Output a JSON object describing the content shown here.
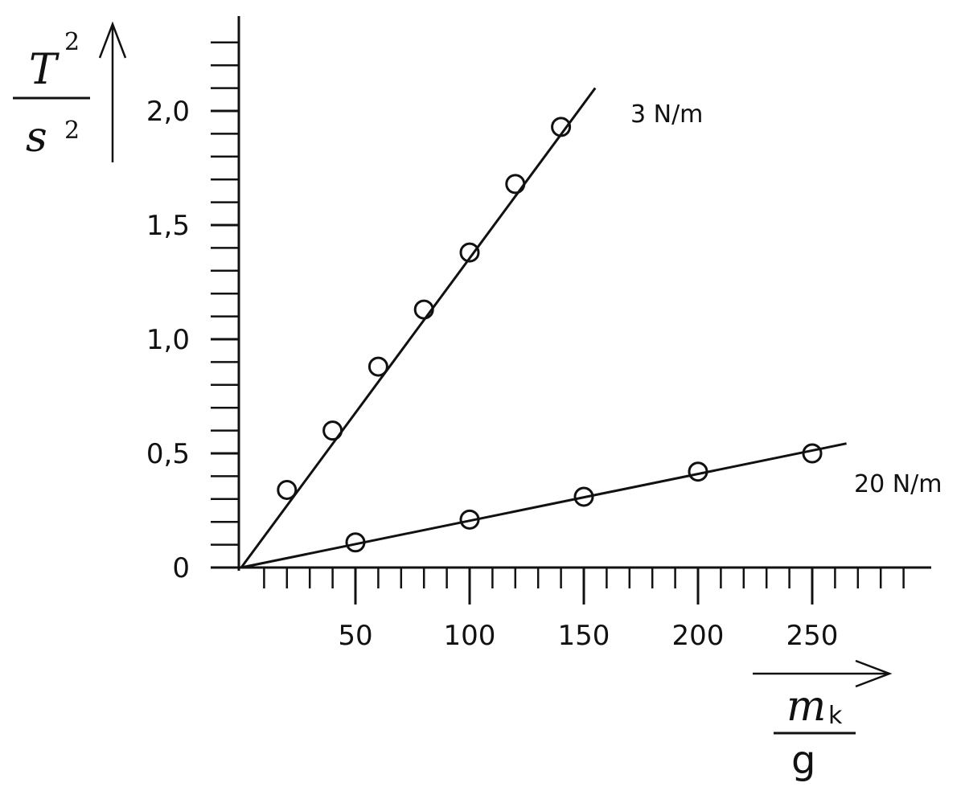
{
  "chart_data": {
    "type": "scatter",
    "xlim": [
      0,
      290
    ],
    "ylim": [
      0,
      2.35
    ],
    "grid": false,
    "x_ticks": [
      50,
      100,
      150,
      200,
      250
    ],
    "x_tick_labels": [
      "50",
      "100",
      "150",
      "200",
      "250"
    ],
    "y_ticks": [
      0,
      0.5,
      1.0,
      1.5,
      2.0
    ],
    "y_tick_labels": [
      "0",
      "0,5",
      "1,0",
      "1,5",
      "2,0"
    ],
    "x_label": {
      "symbol": "m",
      "subscript": "k",
      "unit": "g"
    },
    "y_label": {
      "symbol": "T",
      "superscript": "2",
      "unit": "s",
      "unit_superscript": "2"
    },
    "series": [
      {
        "name": "3 N/m",
        "x": [
          20,
          40,
          60,
          80,
          100,
          120,
          140
        ],
        "y": [
          0.34,
          0.6,
          0.88,
          1.13,
          1.38,
          1.68,
          1.93
        ],
        "fit_slope": 0.01355,
        "fit_x_range": [
          0,
          155
        ]
      },
      {
        "name": "20 N/m",
        "x": [
          50,
          100,
          150,
          200,
          250
        ],
        "y": [
          0.11,
          0.21,
          0.31,
          0.42,
          0.5
        ],
        "fit_slope": 0.00205,
        "fit_x_range": [
          0,
          265
        ]
      }
    ]
  }
}
